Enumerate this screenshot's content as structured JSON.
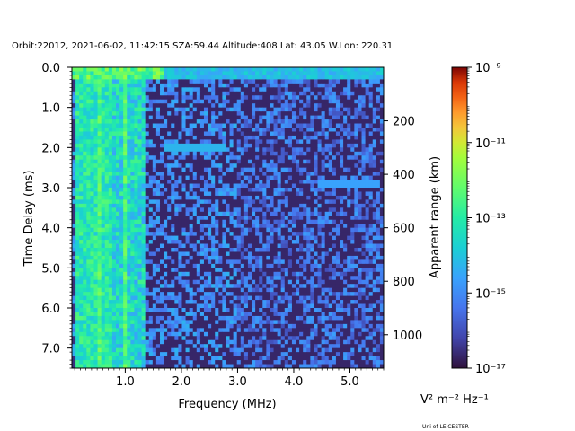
{
  "chart_data": {
    "type": "heatmap",
    "title": "Orbit:22012, 2021-06-02, 11:42:15 SZA:59.44 Altitude:408 Lat: 43.05 W.Lon: 220.31",
    "xlabel": "Frequency (MHz)",
    "ylabel": "Time Delay (ms)",
    "y2label": "Apparent range (km)",
    "xlim": [
      0.05,
      5.6
    ],
    "ylim": [
      7.5,
      0.0
    ],
    "x_ticks": [
      "1.0",
      "2.0",
      "3.0",
      "4.0",
      "5.0"
    ],
    "y_ticks": [
      "0.0",
      "1.0",
      "2.0",
      "3.0",
      "4.0",
      "5.0",
      "6.0",
      "7.0"
    ],
    "y2_ticks": [
      "200",
      "400",
      "600",
      "800",
      "1000"
    ],
    "y2_range_km": [
      0,
      1125
    ],
    "colorbar": {
      "label_html": "V² m⁻² Hz⁻¹",
      "scale": "log",
      "range": [
        1e-17,
        1e-09
      ],
      "ticks": [
        "10⁻⁹",
        "10⁻¹¹",
        "10⁻¹³",
        "10⁻¹⁵",
        "10⁻¹⁷"
      ],
      "colormap": "turbo"
    },
    "features": {
      "strong_low_freq_band_mhz": [
        0.1,
        1.35
      ],
      "top_band_delay_ms": [
        0.0,
        0.3
      ],
      "trace_2ms": {
        "delay_ms": 2.05,
        "freq_mhz": [
          1.7,
          2.8
        ]
      },
      "trace_2_9ms": {
        "delay_ms": 2.9,
        "freq_mhz": [
          4.4,
          5.55
        ]
      }
    }
  },
  "credit": "Uni of LEICESTER"
}
